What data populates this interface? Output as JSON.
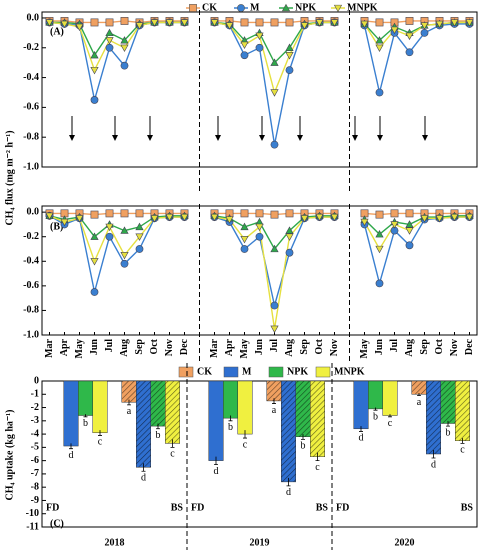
{
  "chart_data": [
    {
      "type": "line",
      "panel": "(A)",
      "y_label": "CH₄ flux (mg m⁻² h⁻¹)",
      "ylim": [
        -1.0,
        0.04
      ],
      "yticks": [
        {
          "value": 0,
          "label": "0.0"
        },
        -0.2,
        -0.4,
        -0.6,
        -0.8,
        {
          "value": -1,
          "label": "-1.0"
        }
      ],
      "series": [
        {
          "name": "CK",
          "color": "#f0a060",
          "marker": "square",
          "values": [
            -0.02,
            -0.02,
            -0.03,
            -0.03,
            -0.03,
            -0.02,
            -0.03,
            -0.02,
            -0.02,
            -0.02,
            null,
            -0.02,
            -0.02,
            -0.03,
            -0.03,
            -0.03,
            -0.03,
            -0.02,
            -0.02,
            -0.02,
            null,
            -0.02,
            -0.03,
            -0.03,
            -0.02,
            -0.02,
            -0.02,
            -0.02,
            -0.02
          ]
        },
        {
          "name": "M",
          "color": "#3a7fd0",
          "marker": "circle",
          "values": [
            -0.03,
            -0.04,
            -0.05,
            -0.55,
            -0.2,
            -0.32,
            -0.05,
            -0.03,
            -0.03,
            -0.03,
            null,
            -0.03,
            -0.05,
            -0.25,
            -0.2,
            -0.85,
            -0.35,
            -0.05,
            -0.03,
            -0.03,
            null,
            -0.05,
            -0.5,
            -0.1,
            -0.23,
            -0.1,
            -0.05,
            -0.04,
            -0.04
          ]
        },
        {
          "name": "NPK",
          "color": "#2fa84a",
          "marker": "triangle-up",
          "values": [
            -0.03,
            -0.03,
            -0.04,
            -0.25,
            -0.1,
            -0.15,
            -0.04,
            -0.03,
            -0.03,
            -0.03,
            null,
            -0.03,
            -0.04,
            -0.15,
            -0.1,
            -0.3,
            -0.2,
            -0.04,
            -0.03,
            -0.03,
            null,
            -0.04,
            -0.15,
            -0.06,
            -0.1,
            -0.05,
            -0.04,
            -0.03,
            -0.03
          ]
        },
        {
          "name": "MNPK",
          "color": "#e6e040",
          "marker": "triangle-down",
          "values": [
            -0.03,
            -0.04,
            -0.06,
            -0.35,
            -0.15,
            -0.2,
            -0.05,
            -0.03,
            -0.03,
            -0.03,
            null,
            -0.03,
            -0.05,
            -0.18,
            -0.12,
            -0.5,
            -0.25,
            -0.05,
            -0.03,
            -0.03,
            null,
            -0.04,
            -0.2,
            -0.08,
            -0.12,
            -0.05,
            -0.04,
            -0.03,
            -0.03
          ]
        }
      ]
    },
    {
      "type": "line",
      "panel": "(B)",
      "categories": [
        "Mar",
        "Apr",
        "May",
        "Jun",
        "Jul",
        "Aug",
        "Sep",
        "Oct",
        "Nov",
        "Dec",
        null,
        "Mar",
        "Apr",
        "May",
        "Jun",
        "Jul",
        "Aug",
        "Sep",
        "Oct",
        "Nov",
        null,
        "May",
        "Jun",
        "Jul",
        "Aug",
        "Sep",
        "Oct",
        "Nov",
        "Dec"
      ],
      "ylim": [
        -1.0,
        0.05
      ],
      "yticks": [
        {
          "value": 0,
          "label": "0.0"
        },
        -0.2,
        -0.4,
        -0.6,
        -0.8,
        {
          "value": -1,
          "label": "-1.0"
        }
      ],
      "series": [
        {
          "color": "#f0a060",
          "marker": "square",
          "values": [
            -0.01,
            -0.01,
            -0.01,
            -0.02,
            -0.01,
            -0.01,
            -0.01,
            -0.01,
            -0.01,
            -0.01,
            null,
            -0.01,
            -0.01,
            -0.01,
            -0.01,
            -0.02,
            -0.01,
            -0.01,
            -0.01,
            -0.01,
            null,
            -0.01,
            -0.02,
            -0.01,
            -0.01,
            -0.01,
            -0.01,
            -0.01,
            -0.01
          ]
        },
        {
          "color": "#3a7fd0",
          "marker": "circle",
          "values": [
            -0.03,
            -0.1,
            -0.05,
            -0.65,
            -0.2,
            -0.42,
            -0.3,
            -0.05,
            -0.04,
            -0.04,
            null,
            -0.04,
            -0.08,
            -0.3,
            -0.2,
            -0.76,
            -0.33,
            -0.05,
            -0.04,
            -0.04,
            null,
            -0.1,
            -0.58,
            -0.15,
            -0.27,
            -0.06,
            -0.05,
            -0.04,
            -0.04
          ]
        },
        {
          "color": "#2fa84a",
          "marker": "triangle-up",
          "values": [
            -0.03,
            -0.06,
            -0.04,
            -0.2,
            -0.1,
            -0.15,
            -0.12,
            -0.04,
            -0.03,
            -0.03,
            null,
            -0.03,
            -0.05,
            -0.12,
            -0.08,
            -0.3,
            -0.15,
            -0.04,
            -0.03,
            -0.03,
            null,
            -0.06,
            -0.18,
            -0.08,
            -0.1,
            -0.04,
            -0.04,
            -0.03,
            -0.03
          ]
        },
        {
          "color": "#e6e040",
          "marker": "triangle-down",
          "values": [
            -0.03,
            -0.08,
            -0.05,
            -0.4,
            -0.12,
            -0.35,
            -0.2,
            -0.05,
            -0.04,
            -0.04,
            null,
            -0.04,
            -0.06,
            -0.22,
            -0.12,
            -0.95,
            -0.2,
            -0.05,
            -0.04,
            -0.04,
            null,
            -0.08,
            -0.3,
            -0.1,
            -0.15,
            -0.05,
            -0.05,
            -0.04,
            -0.04
          ]
        }
      ]
    },
    {
      "type": "bar",
      "panel": "(C)",
      "y_label": "CH₄ uptake (kg ha⁻¹)",
      "groups": [
        "2018",
        "2019",
        "2020"
      ],
      "categories": [
        "FD",
        "BS",
        "FD",
        "BS",
        "FD",
        "BS"
      ],
      "hatched": [
        false,
        true,
        false,
        true,
        false,
        true
      ],
      "ylim": [
        -11,
        0
      ],
      "yticks": [
        0,
        -1,
        -2,
        -3,
        -4,
        -5,
        -6,
        -7,
        -8,
        -9,
        -10,
        -11
      ],
      "series": [
        {
          "name": "CK",
          "color": "#f0a060",
          "values": [
            null,
            -1.6,
            null,
            -1.5,
            null,
            -1.0
          ],
          "errors": [
            null,
            0.2,
            null,
            0.2,
            null,
            0.1
          ],
          "letters": [
            null,
            "a",
            null,
            "a",
            null,
            "a"
          ]
        },
        {
          "name": "M",
          "color": "#2f6fd0",
          "values": [
            -4.9,
            -6.5,
            -6.0,
            -7.6,
            -3.6,
            -5.5
          ],
          "errors": [
            0.2,
            0.3,
            0.3,
            0.3,
            0.2,
            0.3
          ],
          "letters": [
            "d",
            "d",
            "d",
            "d",
            "d",
            "d"
          ]
        },
        {
          "name": "NPK",
          "color": "#2fb84a",
          "values": [
            -2.6,
            -3.4,
            -2.8,
            -4.2,
            -2.1,
            -3.2
          ],
          "errors": [
            0.1,
            0.2,
            0.2,
            0.2,
            0.1,
            0.2
          ],
          "letters": [
            "b",
            "b",
            "b",
            "b",
            "b",
            "b"
          ]
        },
        {
          "name": "MNPK",
          "color": "#f0f040",
          "values": [
            -3.9,
            -4.7,
            -4.0,
            -5.7,
            -2.6,
            -4.5
          ],
          "errors": [
            0.2,
            0.3,
            0.3,
            0.3,
            0.1,
            0.2
          ],
          "letters": [
            "c",
            "c",
            "c",
            "c",
            "c",
            "c"
          ]
        }
      ]
    }
  ]
}
